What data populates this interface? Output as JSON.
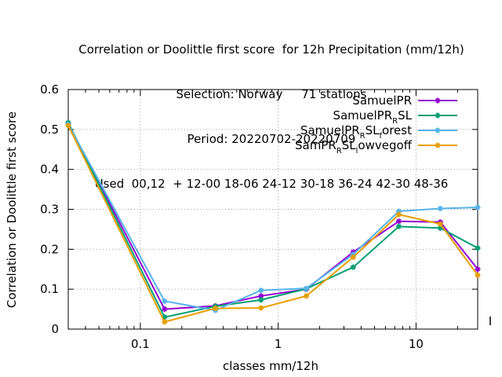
{
  "chart_data": {
    "type": "line",
    "title_lines": [
      "Correlation or Doolittle first score  for 12h Precipitation (mm/12h)",
      "Selection: Norway     71 stations",
      "Period: 20220702-20220709",
      "Used  00,12  + 12-00 18-06 24-12 30-18 36-24 42-30 48-36"
    ],
    "xlabel": "classes mm/12h",
    "ylabel": "Correlation or Doolittle first score",
    "x_scale": "log",
    "xlim": [
      0.03,
      28
    ],
    "ylim": [
      0,
      0.6
    ],
    "x_ticks": [
      {
        "value": 0.1,
        "label": "0.1"
      },
      {
        "value": 1,
        "label": "1"
      },
      {
        "value": 10,
        "label": "10"
      }
    ],
    "y_ticks": [
      {
        "value": 0,
        "label": "0"
      },
      {
        "value": 0.1,
        "label": "0.1"
      },
      {
        "value": 0.2,
        "label": "0.2"
      },
      {
        "value": 0.3,
        "label": "0.3"
      },
      {
        "value": 0.4,
        "label": "0.4"
      },
      {
        "value": 0.5,
        "label": "0.5"
      },
      {
        "value": 0.6,
        "label": "0.6"
      }
    ],
    "grid": true,
    "legend_position": "top-right",
    "x": [
      0.03,
      0.15,
      0.35,
      0.75,
      1.6,
      3.5,
      7.5,
      15,
      28
    ],
    "series": [
      {
        "name": "SamuelPR",
        "legend_parts": [
          "SamuelPR"
        ],
        "color": "#9400d3",
        "values": [
          0.515,
          0.05,
          0.058,
          0.083,
          0.1,
          0.193,
          0.27,
          0.268,
          0.15
        ]
      },
      {
        "name": "SamuelPR_RSL",
        "legend_parts": [
          "SamuelPR",
          "R",
          "SL"
        ],
        "color": "#009e73",
        "values": [
          0.517,
          0.03,
          0.057,
          0.073,
          0.101,
          0.155,
          0.257,
          0.253,
          0.203
        ]
      },
      {
        "name": "SamuelPR_RSL_forest",
        "legend_parts": [
          "SamuelPR",
          "R",
          "SL",
          "f",
          "orest"
        ],
        "color": "#56b4e9",
        "values": [
          0.513,
          0.07,
          0.047,
          0.097,
          0.102,
          0.187,
          0.295,
          0.302,
          0.305
        ]
      },
      {
        "name": "SamPR_RSL_lowvegoff",
        "legend_parts": [
          "SamPR",
          "R",
          "SL",
          "l",
          "owvegoff"
        ],
        "color": "#e69f00",
        "values": [
          0.51,
          0.018,
          0.052,
          0.053,
          0.083,
          0.18,
          0.287,
          0.263,
          0.135
        ]
      }
    ]
  }
}
